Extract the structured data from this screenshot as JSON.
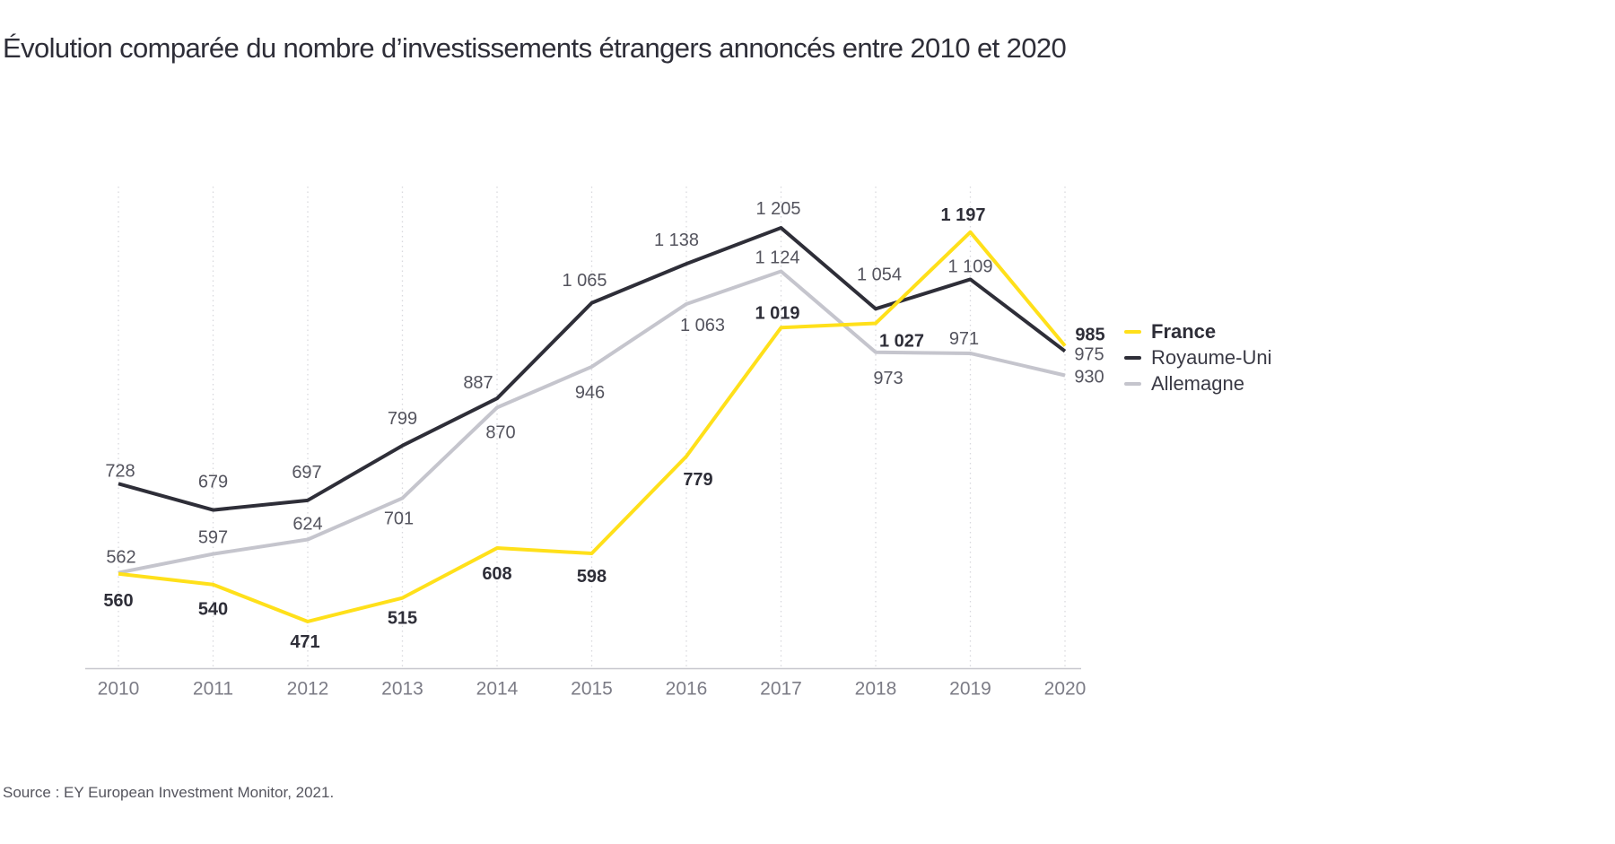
{
  "title": "Évolution comparée du nombre d’investissements étrangers annoncés entre 2010 et 2020",
  "source": "Source : EY European Investment Monitor, 2021.",
  "colors": {
    "france_yellow": "#FFE01A",
    "dark": "#2E2E38",
    "germany_gray": "#C5C5CD",
    "data_label_default": "#54545E",
    "axis_label_gray": "#7C7C86"
  },
  "chart_data": {
    "type": "line",
    "title": "Évolution comparée du nombre d’investissements étrangers annoncés entre 2010 et 2020",
    "categories": [
      "2010",
      "2011",
      "2012",
      "2013",
      "2014",
      "2015",
      "2016",
      "2017",
      "2018",
      "2019",
      "2020"
    ],
    "series": [
      {
        "name": "France",
        "color": "#FFE01A",
        "label_color": "#2E2E38",
        "label_bold": true,
        "values": [
          560,
          540,
          471,
          515,
          608,
          598,
          779,
          1019,
          1027,
          1197,
          985
        ]
      },
      {
        "name": "Royaume-Uni",
        "color": "#2E2E38",
        "label_color": "#54545E",
        "label_bold": false,
        "values": [
          728,
          679,
          697,
          799,
          887,
          1065,
          1138,
          1205,
          1054,
          1109,
          975
        ]
      },
      {
        "name": "Allemagne",
        "color": "#C5C5CD",
        "label_color": "#54545E",
        "label_bold": false,
        "values": [
          562,
          597,
          624,
          701,
          870,
          946,
          1063,
          1124,
          973,
          971,
          930
        ]
      }
    ],
    "ylim": [
      384,
      1282
    ],
    "grid": "vertical-dotted",
    "legend_position": "right",
    "data_labels": true,
    "thousands_separator": " "
  }
}
